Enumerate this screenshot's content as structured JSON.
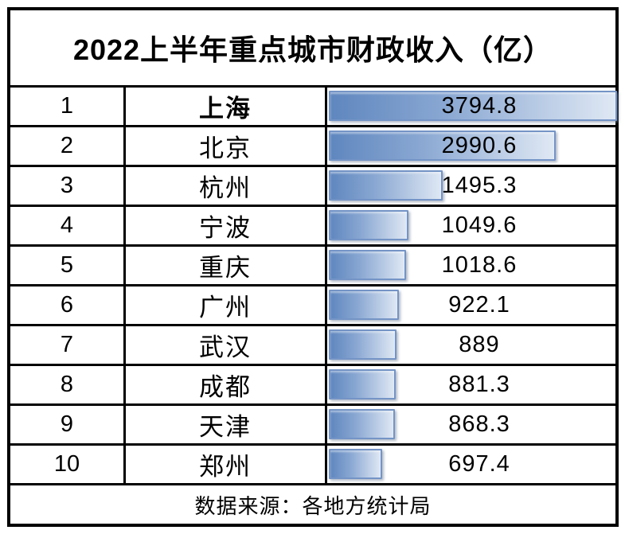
{
  "title": "2022上半年重点城市财政收入（亿）",
  "footer": "数据来源：各地方统计局",
  "colors": {
    "table_border": "#000000",
    "bar_border": "#7494c6",
    "bar_gradient_start": "#5f87bf",
    "bar_gradient_end": "#dfe8f4",
    "background": "#ffffff",
    "text": "#000000"
  },
  "chart_data": {
    "type": "bar",
    "orientation": "horizontal",
    "title": "2022上半年重点城市财政收入（亿）",
    "categories": [
      "上海",
      "北京",
      "杭州",
      "宁波",
      "重庆",
      "广州",
      "武汉",
      "成都",
      "天津",
      "郑州"
    ],
    "values": [
      3794.8,
      2990.6,
      1495.3,
      1049.6,
      1018.6,
      922.1,
      889,
      881.3,
      868.3,
      697.4
    ],
    "value_labels": [
      "3794.8",
      "2990.6",
      "1495.3",
      "1049.6",
      "1018.6",
      "922.1",
      "889",
      "881.3",
      "868.3",
      "697.4"
    ],
    "max_value": 3794.8,
    "xlabel": "",
    "ylabel": "",
    "legend": "none",
    "grid": false,
    "source_note": "数据来源：各地方统计局"
  },
  "rows": [
    {
      "rank": "1",
      "city": "上海",
      "value": 3794.8,
      "value_label": "3794.8",
      "emphasis": true
    },
    {
      "rank": "2",
      "city": "北京",
      "value": 2990.6,
      "value_label": "2990.6",
      "emphasis": false
    },
    {
      "rank": "3",
      "city": "杭州",
      "value": 1495.3,
      "value_label": "1495.3",
      "emphasis": false
    },
    {
      "rank": "4",
      "city": "宁波",
      "value": 1049.6,
      "value_label": "1049.6",
      "emphasis": false
    },
    {
      "rank": "5",
      "city": "重庆",
      "value": 1018.6,
      "value_label": "1018.6",
      "emphasis": false
    },
    {
      "rank": "6",
      "city": "广州",
      "value": 922.1,
      "value_label": "922.1",
      "emphasis": false
    },
    {
      "rank": "7",
      "city": "武汉",
      "value": 889,
      "value_label": "889",
      "emphasis": false
    },
    {
      "rank": "8",
      "city": "成都",
      "value": 881.3,
      "value_label": "881.3",
      "emphasis": false
    },
    {
      "rank": "9",
      "city": "天津",
      "value": 868.3,
      "value_label": "868.3",
      "emphasis": false
    },
    {
      "rank": "10",
      "city": "郑州",
      "value": 697.4,
      "value_label": "697.4",
      "emphasis": false
    }
  ]
}
